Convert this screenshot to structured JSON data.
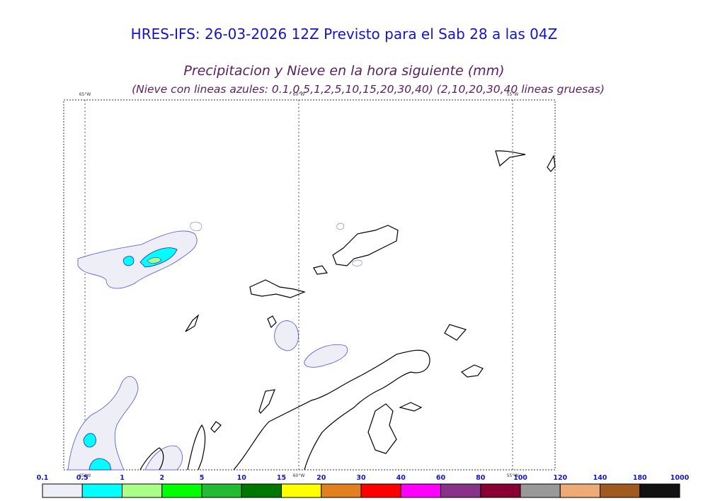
{
  "header": {
    "title": "HRES-IFS: 26-03-2026 12Z Previsto para el Sab 28 a las 04Z",
    "subtitle": "Precipitacion y Nieve en la hora siguiente (mm)",
    "note": "(Nieve con lineas azules: 0.1,0.5,1,2,5,10,15,20,30,40)  (2,10,20,30,40 lineas gruesas)"
  },
  "map": {
    "meridians": [
      "65°W",
      "60°W",
      "55°W"
    ]
  },
  "colorbar": {
    "labels": [
      "0.1",
      "0.5",
      "1",
      "2",
      "5",
      "10",
      "15",
      "20",
      "30",
      "40",
      "60",
      "80",
      "100",
      "120",
      "140",
      "180",
      "1000"
    ],
    "colors": [
      "#eeeef6",
      "#00ffff",
      "#aaff88",
      "#00ff00",
      "#22bb33",
      "#007700",
      "#ffff00",
      "#e08020",
      "#ff0000",
      "#ff00ff",
      "#883388",
      "#880033",
      "#999999",
      "#eeaa77",
      "#a05a20",
      "#111111"
    ]
  }
}
